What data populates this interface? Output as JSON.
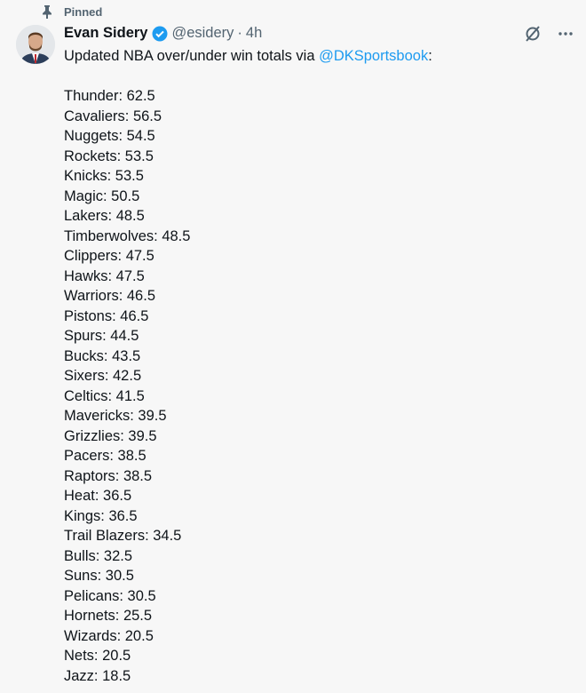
{
  "pinned_label": "Pinned",
  "author": {
    "name": "Evan Sidery",
    "handle": "@esidery",
    "separator": "·",
    "time": "4h",
    "verified": true
  },
  "tweet": {
    "intro": "Updated NBA over/under win totals via ",
    "mention": "@DKSportsbook",
    "suffix": ":"
  },
  "lines": [
    "Thunder: 62.5",
    "Cavaliers: 56.5",
    "Nuggets: 54.5",
    "Rockets: 53.5",
    "Knicks: 53.5",
    "Magic: 50.5",
    "Lakers: 48.5",
    "Timberwolves: 48.5",
    "Clippers: 47.5",
    "Hawks: 47.5",
    "Warriors: 46.5",
    "Pistons: 46.5",
    "Spurs: 44.5",
    "Bucks: 43.5",
    "Sixers: 42.5",
    "Celtics: 41.5",
    "Mavericks: 39.5",
    "Grizzlies: 39.5",
    "Pacers: 38.5",
    "Raptors: 38.5",
    "Heat: 36.5",
    "Kings: 36.5",
    "Trail Blazers: 34.5",
    "Bulls: 32.5",
    "Suns: 30.5",
    "Pelicans: 30.5",
    "Hornets: 25.5",
    "Wizards: 20.5",
    "Nets: 20.5",
    "Jazz: 18.5"
  ],
  "colors": {
    "accent": "#1d9bf0",
    "muted": "#536471"
  },
  "icons": {
    "pin": "pin-icon",
    "verified": "verified-badge-icon",
    "grok": "grok-icon",
    "more": "more-icon"
  }
}
